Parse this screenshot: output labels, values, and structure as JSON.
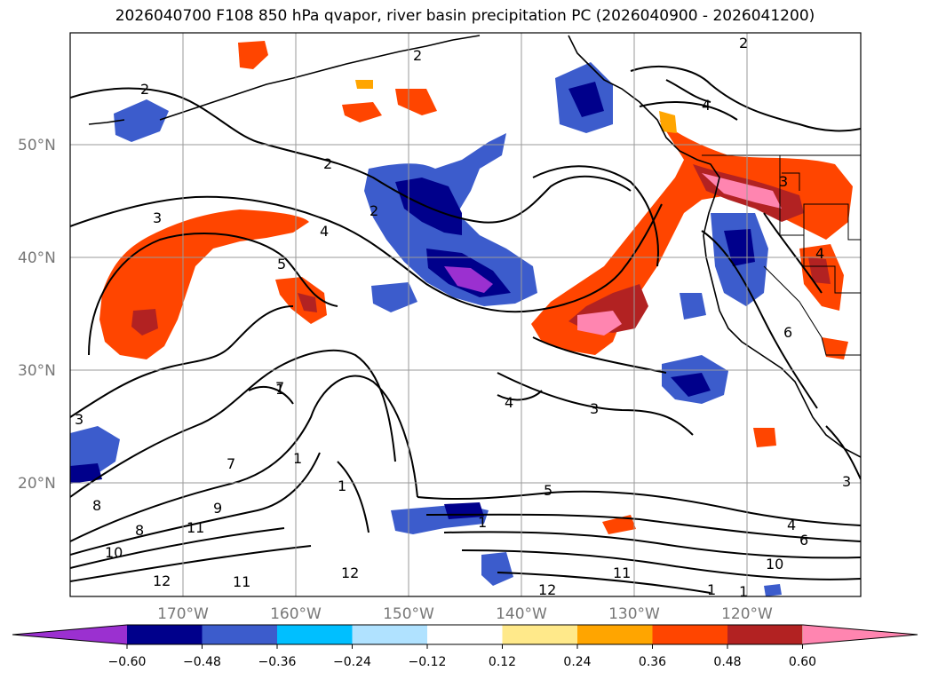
{
  "title": "2026040700 F108 850 hPa qvapor, river basin precipitation PC (2026040900 - 2026041200)",
  "latitudes": [
    "50°N",
    "40°N",
    "30°N",
    "20°N"
  ],
  "longitudes": [
    "170°W",
    "160°W",
    "150°W",
    "140°W",
    "130°W",
    "120°W"
  ],
  "colorbar": {
    "ticks": [
      "−0.60",
      "−0.48",
      "−0.36",
      "−0.24",
      "−0.12",
      "0.12",
      "0.24",
      "0.36",
      "0.48",
      "0.60"
    ],
    "colors": [
      "#9b30d0",
      "#00008b",
      "#3c5ccc",
      "#00bfff",
      "#b0e2ff",
      "#ffffff",
      "#ffe98a",
      "#ffa500",
      "#ff4500",
      "#b22222",
      "#ff85b0"
    ]
  },
  "contour_labels": [
    "2",
    "2",
    "2",
    "2",
    "2",
    "3",
    "3",
    "3",
    "3",
    "3",
    "4",
    "4",
    "4",
    "4",
    "4",
    "5",
    "5",
    "6",
    "6",
    "7",
    "7",
    "8",
    "8",
    "9",
    "10",
    "10",
    "11",
    "11",
    "11",
    "12",
    "12",
    "12",
    "1",
    "1",
    "1",
    "1",
    "1",
    "1"
  ]
}
